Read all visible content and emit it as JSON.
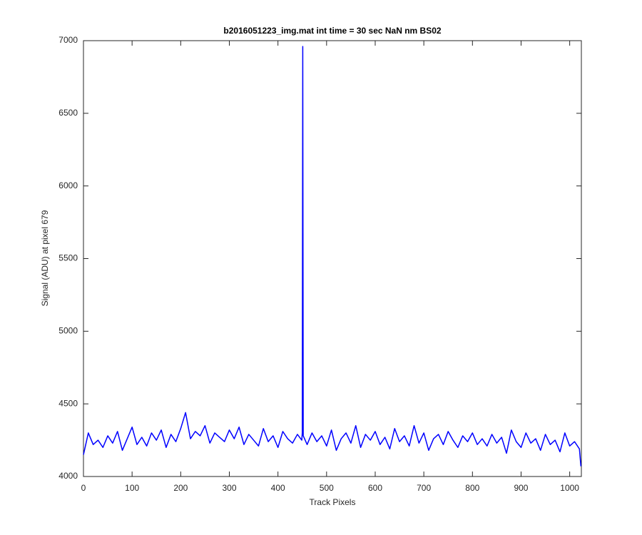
{
  "chart_data": {
    "type": "line",
    "title": "b2016051223_img.mat int time = 30 sec  NaN nm BS02",
    "xlabel": "Track Pixels",
    "ylabel": "Signal (ADU) at pixel 679",
    "x": [
      0,
      10,
      20,
      30,
      40,
      50,
      60,
      70,
      80,
      90,
      100,
      110,
      120,
      130,
      140,
      150,
      160,
      170,
      180,
      190,
      200,
      210,
      220,
      230,
      240,
      250,
      260,
      270,
      280,
      290,
      300,
      310,
      320,
      330,
      340,
      350,
      360,
      370,
      380,
      390,
      400,
      410,
      420,
      430,
      440,
      449,
      450,
      451,
      452,
      460,
      470,
      480,
      490,
      500,
      510,
      520,
      530,
      540,
      550,
      560,
      570,
      580,
      590,
      600,
      610,
      620,
      630,
      640,
      650,
      660,
      670,
      680,
      690,
      700,
      710,
      720,
      730,
      740,
      750,
      760,
      770,
      780,
      790,
      800,
      810,
      820,
      830,
      840,
      850,
      860,
      870,
      880,
      890,
      900,
      910,
      920,
      930,
      940,
      950,
      960,
      970,
      980,
      990,
      1000,
      1010,
      1020,
      1023
    ],
    "series": [
      {
        "name": "signal",
        "color": "#0000ff",
        "values": [
          4150,
          4300,
          4220,
          4250,
          4200,
          4280,
          4230,
          4310,
          4180,
          4260,
          4340,
          4220,
          4270,
          4210,
          4300,
          4250,
          4320,
          4200,
          4290,
          4240,
          4330,
          4440,
          4260,
          4310,
          4280,
          4350,
          4230,
          4300,
          4270,
          4240,
          4320,
          4260,
          4340,
          4220,
          4290,
          4250,
          4210,
          4330,
          4240,
          4280,
          4200,
          4310,
          4260,
          4230,
          4290,
          4250,
          4300,
          6960,
          4280,
          4220,
          4300,
          4240,
          4280,
          4210,
          4320,
          4180,
          4260,
          4300,
          4230,
          4350,
          4200,
          4290,
          4250,
          4310,
          4220,
          4270,
          4190,
          4330,
          4240,
          4280,
          4210,
          4350,
          4230,
          4300,
          4180,
          4260,
          4290,
          4220,
          4310,
          4250,
          4200,
          4280,
          4240,
          4300,
          4220,
          4260,
          4210,
          4290,
          4230,
          4270,
          4160,
          4320,
          4240,
          4200,
          4300,
          4230,
          4260,
          4180,
          4290,
          4220,
          4250,
          4170,
          4300,
          4210,
          4240,
          4190,
          4070
        ]
      }
    ],
    "xlim": [
      0,
      1024
    ],
    "ylim": [
      4000,
      7000
    ],
    "xticks": [
      0,
      100,
      200,
      300,
      400,
      500,
      600,
      700,
      800,
      900,
      1000
    ],
    "yticks": [
      4000,
      4500,
      5000,
      5500,
      6000,
      6500,
      7000
    ]
  }
}
